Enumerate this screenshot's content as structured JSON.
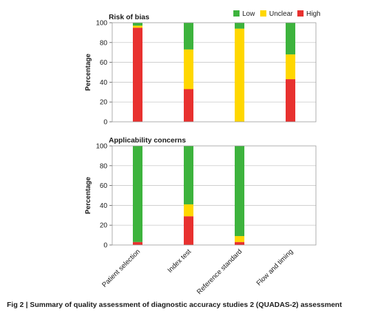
{
  "legend": [
    {
      "label": "Low",
      "color": "#3db33d"
    },
    {
      "label": "Unclear",
      "color": "#ffd700"
    },
    {
      "label": "High",
      "color": "#e8312f"
    }
  ],
  "caption": {
    "fig_label": "Fig 2",
    "separator": "|",
    "text": "Summary of quality assessment of diagnostic accuracy studies 2 (QUADAS-2) assessment"
  },
  "chart_data": [
    {
      "type": "bar",
      "stacked": true,
      "title": "Risk of bias",
      "ylabel": "Percentage",
      "ylim": [
        0,
        100
      ],
      "yticks": [
        0,
        20,
        40,
        60,
        80,
        100
      ],
      "grid": true,
      "categories": [
        "Patient selection",
        "Index test",
        "Reference standard",
        "Flow and timing"
      ],
      "series": [
        {
          "name": "High",
          "color": "#e8312f",
          "values": [
            95,
            33,
            0,
            43
          ]
        },
        {
          "name": "Unclear",
          "color": "#ffd700",
          "values": [
            2,
            40,
            94,
            25
          ]
        },
        {
          "name": "Low",
          "color": "#3db33d",
          "values": [
            3,
            27,
            6,
            32
          ]
        }
      ]
    },
    {
      "type": "bar",
      "stacked": true,
      "title": "Applicability concerns",
      "ylabel": "Percentage",
      "ylim": [
        0,
        100
      ],
      "yticks": [
        0,
        20,
        40,
        60,
        80,
        100
      ],
      "grid": true,
      "categories": [
        "Patient selection",
        "Index test",
        "Reference standard",
        "Flow and timing"
      ],
      "series": [
        {
          "name": "High",
          "color": "#e8312f",
          "values": [
            3,
            29,
            3,
            0
          ]
        },
        {
          "name": "Unclear",
          "color": "#ffd700",
          "values": [
            0,
            12,
            6,
            0
          ]
        },
        {
          "name": "Low",
          "color": "#3db33d",
          "values": [
            97,
            59,
            91,
            0
          ]
        }
      ]
    }
  ]
}
